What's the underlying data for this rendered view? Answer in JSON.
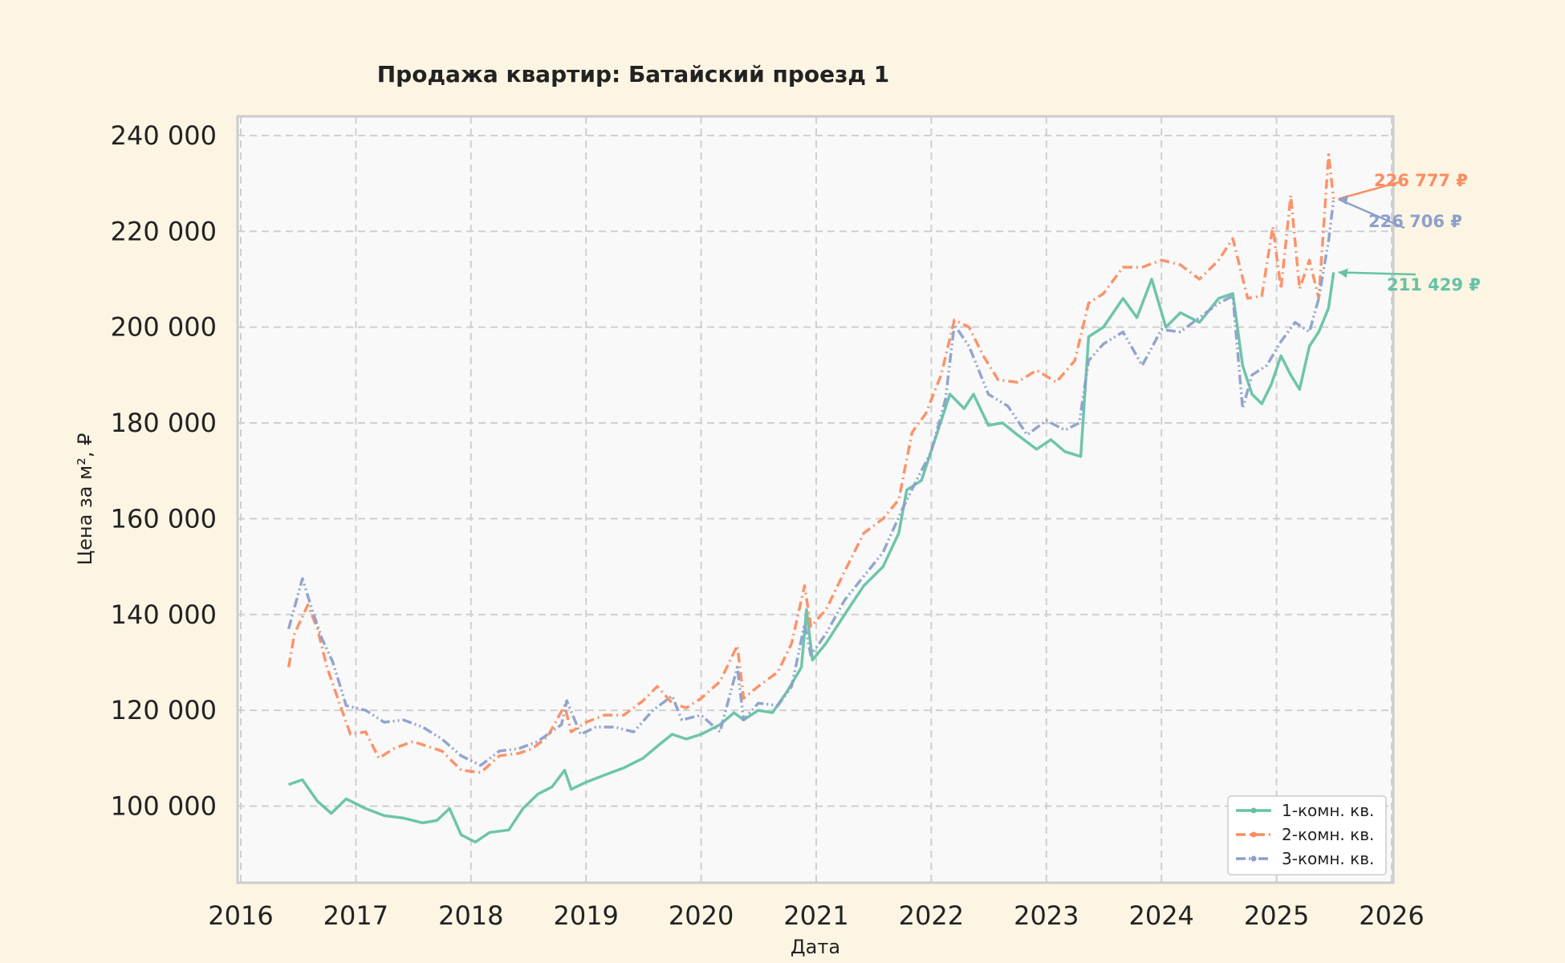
{
  "chart_data": {
    "type": "line",
    "title": "Продажа квартир: Батайский проезд 1",
    "xlabel": "Дата",
    "ylabel": "Цена за м², ₽",
    "xlim": [
      "2016-01-01",
      "2026-01-01"
    ],
    "ylim": [
      84000,
      244000
    ],
    "x_ticks": [
      "2016",
      "2017",
      "2018",
      "2019",
      "2020",
      "2021",
      "2022",
      "2023",
      "2024",
      "2025",
      "2026"
    ],
    "y_ticks": [
      {
        "value": 100000,
        "label": "100 000"
      },
      {
        "value": 120000,
        "label": "120 000"
      },
      {
        "value": 140000,
        "label": "140 000"
      },
      {
        "value": 160000,
        "label": "160 000"
      },
      {
        "value": 180000,
        "label": "180 000"
      },
      {
        "value": 200000,
        "label": "200 000"
      },
      {
        "value": 220000,
        "label": "220 000"
      },
      {
        "value": 240000,
        "label": "240 000"
      }
    ],
    "grid": true,
    "legend_position": "bottom-right",
    "series": [
      {
        "name": "1-комн. кв.",
        "color": "#66c2a5",
        "dash": "solid",
        "final_label": "211 429 ₽",
        "points": [
          [
            "2016-06-01",
            104500
          ],
          [
            "2016-07-15",
            105500
          ],
          [
            "2016-09-01",
            101000
          ],
          [
            "2016-10-15",
            98500
          ],
          [
            "2016-12-01",
            101500
          ],
          [
            "2017-02-01",
            99500
          ],
          [
            "2017-04-01",
            98000
          ],
          [
            "2017-06-01",
            97500
          ],
          [
            "2017-08-01",
            96500
          ],
          [
            "2017-09-15",
            97000
          ],
          [
            "2017-10-25",
            99500
          ],
          [
            "2017-12-01",
            94000
          ],
          [
            "2018-01-15",
            92500
          ],
          [
            "2018-03-01",
            94500
          ],
          [
            "2018-05-01",
            95000
          ],
          [
            "2018-06-15",
            99500
          ],
          [
            "2018-08-01",
            102500
          ],
          [
            "2018-09-15",
            104000
          ],
          [
            "2018-10-25",
            107500
          ],
          [
            "2018-11-15",
            103500
          ],
          [
            "2019-01-01",
            105000
          ],
          [
            "2019-03-01",
            106500
          ],
          [
            "2019-05-01",
            108000
          ],
          [
            "2019-07-01",
            110000
          ],
          [
            "2019-08-15",
            112500
          ],
          [
            "2019-10-01",
            115000
          ],
          [
            "2019-11-15",
            114000
          ],
          [
            "2020-01-01",
            115000
          ],
          [
            "2020-03-01",
            117000
          ],
          [
            "2020-04-15",
            119500
          ],
          [
            "2020-05-15",
            118000
          ],
          [
            "2020-07-01",
            120000
          ],
          [
            "2020-08-15",
            119500
          ],
          [
            "2020-10-01",
            124000
          ],
          [
            "2020-11-15",
            129000
          ],
          [
            "2020-12-01",
            141000
          ],
          [
            "2020-12-20",
            130500
          ],
          [
            "2021-02-01",
            134000
          ],
          [
            "2021-04-01",
            140000
          ],
          [
            "2021-06-01",
            146000
          ],
          [
            "2021-08-01",
            150000
          ],
          [
            "2021-09-20",
            157000
          ],
          [
            "2021-10-15",
            166000
          ],
          [
            "2021-12-01",
            168000
          ],
          [
            "2022-01-15",
            177000
          ],
          [
            "2022-03-01",
            186000
          ],
          [
            "2022-04-15",
            183000
          ],
          [
            "2022-05-15",
            186000
          ],
          [
            "2022-07-01",
            179500
          ],
          [
            "2022-08-15",
            180000
          ],
          [
            "2022-10-01",
            177500
          ],
          [
            "2022-12-01",
            174500
          ],
          [
            "2023-01-15",
            176500
          ],
          [
            "2023-03-01",
            174000
          ],
          [
            "2023-04-20",
            173000
          ],
          [
            "2023-05-15",
            198000
          ],
          [
            "2023-07-01",
            200000
          ],
          [
            "2023-09-01",
            206000
          ],
          [
            "2023-10-15",
            202000
          ],
          [
            "2023-12-01",
            210000
          ],
          [
            "2024-01-15",
            200000
          ],
          [
            "2024-03-01",
            203000
          ],
          [
            "2024-05-01",
            201000
          ],
          [
            "2024-07-01",
            206000
          ],
          [
            "2024-08-15",
            207000
          ],
          [
            "2024-09-15",
            192000
          ],
          [
            "2024-10-15",
            186000
          ],
          [
            "2024-11-15",
            184000
          ],
          [
            "2024-12-15",
            188000
          ],
          [
            "2025-01-15",
            194000
          ],
          [
            "2025-02-15",
            190000
          ],
          [
            "2025-03-15",
            187000
          ],
          [
            "2025-04-15",
            196000
          ],
          [
            "2025-05-15",
            199000
          ],
          [
            "2025-06-15",
            204000
          ],
          [
            "2025-07-01",
            211429
          ]
        ]
      },
      {
        "name": "2-комн. кв.",
        "color": "#fc8d62",
        "dash": "dashdot",
        "final_label": "226 777 ₽",
        "points": [
          [
            "2016-06-01",
            129000
          ],
          [
            "2016-06-20",
            136000
          ],
          [
            "2016-08-01",
            142000
          ],
          [
            "2016-09-01",
            137000
          ],
          [
            "2016-10-01",
            129000
          ],
          [
            "2016-11-15",
            120500
          ],
          [
            "2016-12-15",
            115000
          ],
          [
            "2017-02-01",
            115500
          ],
          [
            "2017-03-15",
            110000
          ],
          [
            "2017-05-01",
            112000
          ],
          [
            "2017-07-01",
            113500
          ],
          [
            "2017-08-15",
            112500
          ],
          [
            "2017-10-01",
            111500
          ],
          [
            "2017-12-01",
            107500
          ],
          [
            "2018-02-01",
            107000
          ],
          [
            "2018-04-01",
            110500
          ],
          [
            "2018-06-01",
            111000
          ],
          [
            "2018-07-15",
            112000
          ],
          [
            "2018-09-01",
            114500
          ],
          [
            "2018-10-25",
            121000
          ],
          [
            "2018-11-15",
            115500
          ],
          [
            "2019-01-01",
            117500
          ],
          [
            "2019-03-01",
            119000
          ],
          [
            "2019-05-01",
            119000
          ],
          [
            "2019-07-01",
            122000
          ],
          [
            "2019-08-15",
            125000
          ],
          [
            "2019-10-01",
            121500
          ],
          [
            "2019-11-15",
            120500
          ],
          [
            "2020-01-01",
            122500
          ],
          [
            "2020-03-01",
            126000
          ],
          [
            "2020-04-25",
            133500
          ],
          [
            "2020-05-15",
            122500
          ],
          [
            "2020-07-01",
            125000
          ],
          [
            "2020-09-01",
            128000
          ],
          [
            "2020-10-15",
            134000
          ],
          [
            "2020-11-25",
            146000
          ],
          [
            "2020-12-15",
            137500
          ],
          [
            "2021-02-01",
            141000
          ],
          [
            "2021-04-01",
            149000
          ],
          [
            "2021-06-01",
            157000
          ],
          [
            "2021-08-01",
            160000
          ],
          [
            "2021-09-20",
            164000
          ],
          [
            "2021-11-01",
            178000
          ],
          [
            "2021-12-15",
            182000
          ],
          [
            "2022-02-01",
            190000
          ],
          [
            "2022-03-15",
            201500
          ],
          [
            "2022-05-01",
            200000
          ],
          [
            "2022-06-15",
            194000
          ],
          [
            "2022-08-01",
            189000
          ],
          [
            "2022-10-01",
            188500
          ],
          [
            "2022-12-01",
            191000
          ],
          [
            "2023-02-01",
            188500
          ],
          [
            "2023-04-01",
            193000
          ],
          [
            "2023-05-15",
            205000
          ],
          [
            "2023-07-01",
            207000
          ],
          [
            "2023-09-01",
            212500
          ],
          [
            "2023-11-01",
            212500
          ],
          [
            "2024-01-01",
            214000
          ],
          [
            "2024-03-01",
            213000
          ],
          [
            "2024-05-01",
            210000
          ],
          [
            "2024-07-01",
            214000
          ],
          [
            "2024-08-15",
            218500
          ],
          [
            "2024-10-01",
            206000
          ],
          [
            "2024-11-15",
            206500
          ],
          [
            "2024-12-20",
            221000
          ],
          [
            "2025-01-15",
            208000
          ],
          [
            "2025-02-15",
            227500
          ],
          [
            "2025-03-15",
            208000
          ],
          [
            "2025-04-15",
            214000
          ],
          [
            "2025-05-15",
            206000
          ],
          [
            "2025-06-15",
            236000
          ],
          [
            "2025-07-01",
            226777
          ]
        ]
      },
      {
        "name": "3-комн. кв.",
        "color": "#8da0cb",
        "dash": "dashdotdot",
        "final_label": "226 706 ₽",
        "points": [
          [
            "2016-06-01",
            137000
          ],
          [
            "2016-07-15",
            147500
          ],
          [
            "2016-08-15",
            141000
          ],
          [
            "2016-09-15",
            135000
          ],
          [
            "2016-10-20",
            130000
          ],
          [
            "2016-12-01",
            121000
          ],
          [
            "2017-02-01",
            120000
          ],
          [
            "2017-04-01",
            117500
          ],
          [
            "2017-06-01",
            118000
          ],
          [
            "2017-08-01",
            116500
          ],
          [
            "2017-10-01",
            114000
          ],
          [
            "2017-12-01",
            110500
          ],
          [
            "2018-02-01",
            108500
          ],
          [
            "2018-04-01",
            111500
          ],
          [
            "2018-06-01",
            112000
          ],
          [
            "2018-08-01",
            113500
          ],
          [
            "2018-10-15",
            117000
          ],
          [
            "2018-11-01",
            122000
          ],
          [
            "2018-12-15",
            115000
          ],
          [
            "2019-02-01",
            116500
          ],
          [
            "2019-04-01",
            116500
          ],
          [
            "2019-06-01",
            115500
          ],
          [
            "2019-08-01",
            120000
          ],
          [
            "2019-10-01",
            123000
          ],
          [
            "2019-11-01",
            118000
          ],
          [
            "2020-01-01",
            119000
          ],
          [
            "2020-03-01",
            115500
          ],
          [
            "2020-04-25",
            129000
          ],
          [
            "2020-05-15",
            118000
          ],
          [
            "2020-07-01",
            121500
          ],
          [
            "2020-09-01",
            121000
          ],
          [
            "2020-10-15",
            125000
          ],
          [
            "2020-11-25",
            138000
          ],
          [
            "2020-12-15",
            131500
          ],
          [
            "2021-02-01",
            136000
          ],
          [
            "2021-04-01",
            143000
          ],
          [
            "2021-06-01",
            148000
          ],
          [
            "2021-08-01",
            153000
          ],
          [
            "2021-10-01",
            162000
          ],
          [
            "2021-11-15",
            168000
          ],
          [
            "2022-01-01",
            174000
          ],
          [
            "2022-02-15",
            185000
          ],
          [
            "2022-03-15",
            200500
          ],
          [
            "2022-05-01",
            196000
          ],
          [
            "2022-07-01",
            186000
          ],
          [
            "2022-09-01",
            183500
          ],
          [
            "2022-11-01",
            177500
          ],
          [
            "2023-01-01",
            180500
          ],
          [
            "2023-03-01",
            178500
          ],
          [
            "2023-04-15",
            180000
          ],
          [
            "2023-05-15",
            193000
          ],
          [
            "2023-07-01",
            196500
          ],
          [
            "2023-09-01",
            199000
          ],
          [
            "2023-11-01",
            192000
          ],
          [
            "2024-01-01",
            199500
          ],
          [
            "2024-03-01",
            199000
          ],
          [
            "2024-05-01",
            202000
          ],
          [
            "2024-07-01",
            205000
          ],
          [
            "2024-08-15",
            206500
          ],
          [
            "2024-09-15",
            183000
          ],
          [
            "2024-10-15",
            190000
          ],
          [
            "2024-12-01",
            192000
          ],
          [
            "2025-01-15",
            197000
          ],
          [
            "2025-03-01",
            201000
          ],
          [
            "2025-04-15",
            199000
          ],
          [
            "2025-05-15",
            206000
          ],
          [
            "2025-06-15",
            218000
          ],
          [
            "2025-07-01",
            226706
          ]
        ]
      }
    ]
  }
}
